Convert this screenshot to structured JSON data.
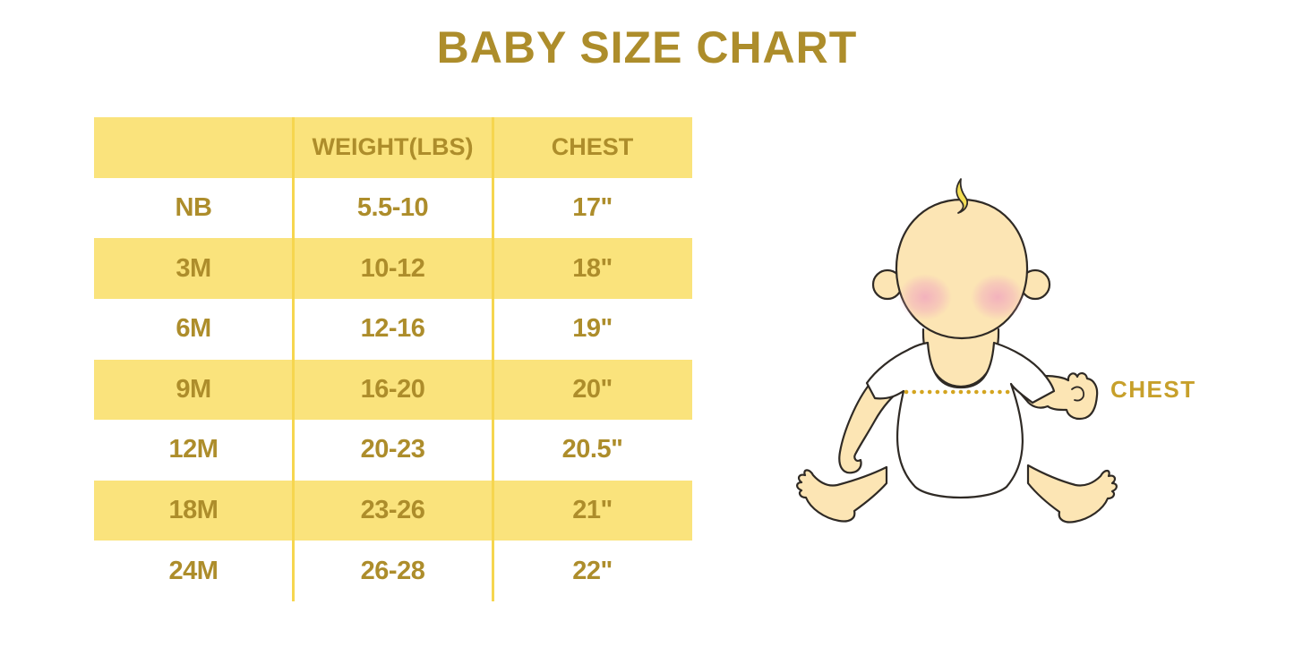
{
  "title": "BABY SIZE CHART",
  "chart_data": {
    "type": "table",
    "title": "BABY SIZE CHART",
    "columns": [
      "",
      "WEIGHT(LBS)",
      "CHEST"
    ],
    "rows": [
      [
        "NB",
        "5.5-10",
        "17\""
      ],
      [
        "3M",
        "10-12",
        "18\""
      ],
      [
        "6M",
        "12-16",
        "19\""
      ],
      [
        "9M",
        "16-20",
        "20\""
      ],
      [
        "12M",
        "20-23",
        "20.5\""
      ],
      [
        "18M",
        "23-26",
        "21\""
      ],
      [
        "24M",
        "26-28",
        "22\""
      ]
    ],
    "layout": {
      "striping": "header and every second body row yellow",
      "grid": "two vertical gold column dividers, no horizontal lines"
    }
  },
  "illustration": {
    "name": "baby-chest-measurement",
    "label": "CHEST",
    "dotted_line": "horizontal dotted gold line across baby's chest"
  },
  "colors": {
    "accent-gold": "#AD8D2B",
    "row-yellow": "#FAE37C",
    "divider-yellow": "#F6D64F",
    "label-gold": "#C7A02B",
    "dot-gold": "#D4A520",
    "skin": "#FCE5B4",
    "skin-outline": "#2F2A25",
    "hair": "#F3DE55",
    "shirt": "#FFFFFF",
    "blush": "#F1A9BE"
  }
}
